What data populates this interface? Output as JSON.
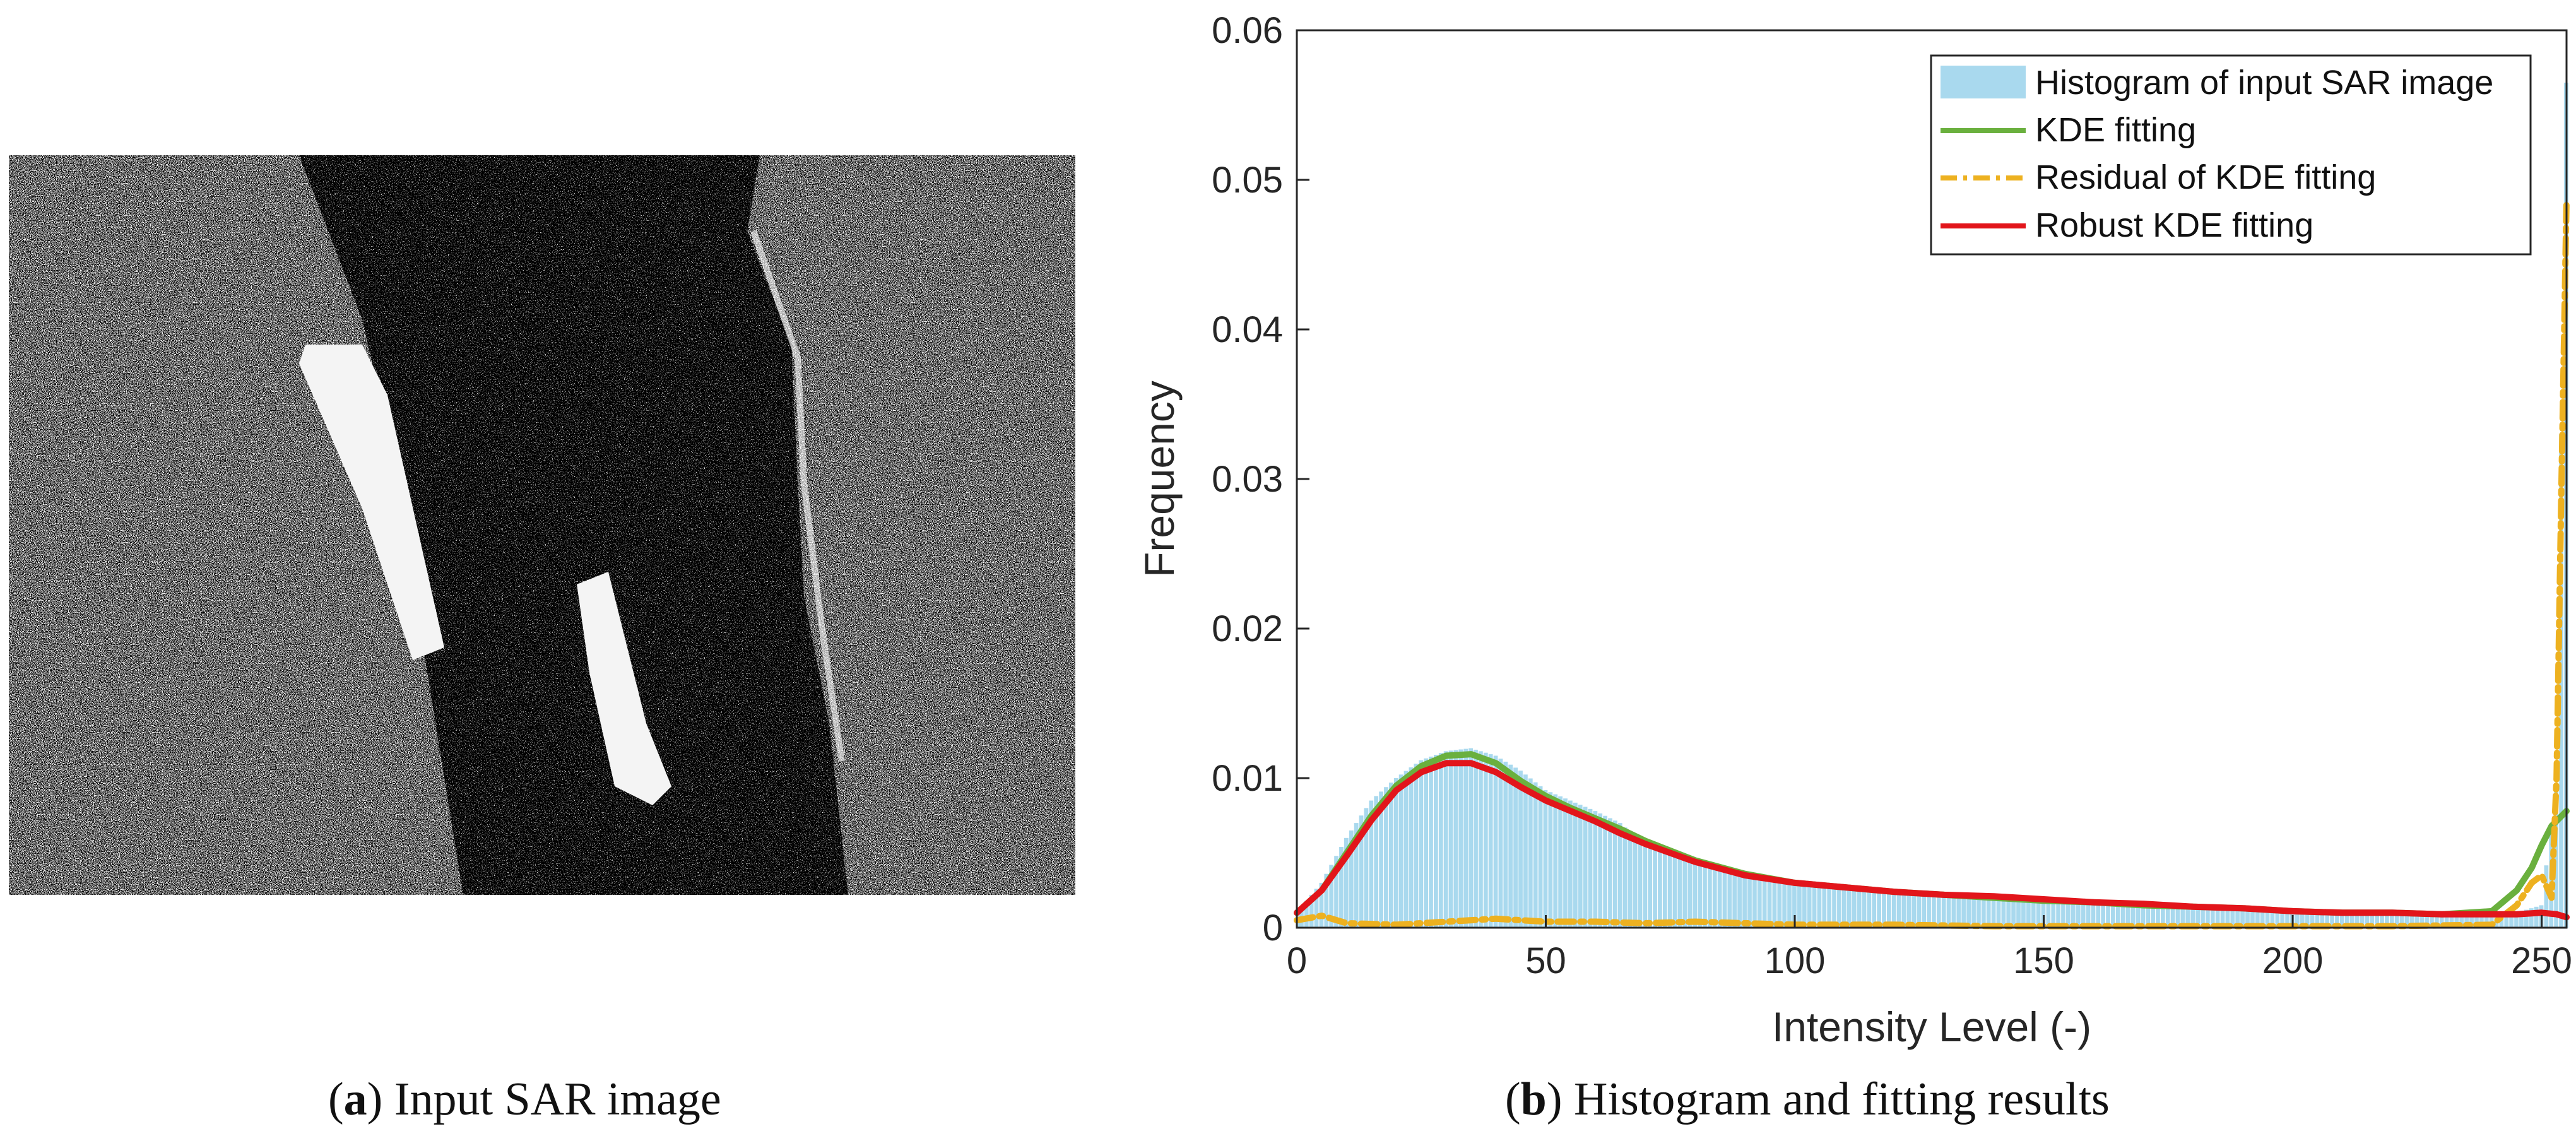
{
  "captions": {
    "a": {
      "tag": "a",
      "text": " Input SAR image"
    },
    "b": {
      "tag": "b",
      "text": " Histogram and fitting results"
    }
  },
  "colors": {
    "histogram": "#a9d9ee",
    "kde": "#6ab03e",
    "residual": "#edb120",
    "robust": "#e2151b",
    "axis": "#262626"
  },
  "chart_data": {
    "type": "bar",
    "xlabel": "Intensity Level (-)",
    "ylabel": "Frequency",
    "xlim": [
      0,
      255
    ],
    "ylim": [
      0,
      0.06
    ],
    "xticks": [
      0,
      50,
      100,
      150,
      200,
      250
    ],
    "yticks": [
      0,
      0.01,
      0.02,
      0.03,
      0.04,
      0.05,
      0.06
    ],
    "ytick_labels": [
      "0",
      "0.01",
      "0.02",
      "0.03",
      "0.04",
      "0.05",
      "0.06"
    ],
    "grid": false,
    "legend_position": "top-right",
    "histogram": {
      "name": "Histogram of input SAR image",
      "x": [
        0,
        5,
        10,
        15,
        20,
        25,
        30,
        35,
        40,
        45,
        50,
        55,
        60,
        65,
        70,
        75,
        80,
        85,
        90,
        95,
        100,
        110,
        120,
        130,
        140,
        150,
        160,
        170,
        180,
        190,
        200,
        210,
        220,
        230,
        240,
        245,
        250,
        253,
        255
      ],
      "values": [
        0.001,
        0.003,
        0.006,
        0.0085,
        0.01,
        0.0112,
        0.0118,
        0.012,
        0.0115,
        0.0105,
        0.0092,
        0.0085,
        0.0078,
        0.007,
        0.0055,
        0.0049,
        0.0045,
        0.004,
        0.0036,
        0.0032,
        0.003,
        0.0027,
        0.0025,
        0.0022,
        0.002,
        0.0018,
        0.0017,
        0.0015,
        0.0014,
        0.0012,
        0.0011,
        0.001,
        0.001,
        0.0009,
        0.0009,
        0.001,
        0.0015,
        0.0095,
        0.0565
      ]
    },
    "series": [
      {
        "name": "KDE fitting",
        "x": [
          0,
          5,
          10,
          15,
          20,
          25,
          30,
          35,
          40,
          45,
          50,
          55,
          60,
          65,
          70,
          80,
          90,
          100,
          110,
          120,
          130,
          140,
          150,
          160,
          170,
          180,
          190,
          200,
          210,
          220,
          230,
          240,
          245,
          248,
          250,
          252,
          255
        ],
        "values": [
          0.001,
          0.0025,
          0.005,
          0.0075,
          0.0095,
          0.0108,
          0.0115,
          0.0116,
          0.011,
          0.0098,
          0.0088,
          0.008,
          0.0073,
          0.0066,
          0.0058,
          0.0045,
          0.0036,
          0.003,
          0.0027,
          0.0024,
          0.0022,
          0.002,
          0.0018,
          0.0017,
          0.0015,
          0.0014,
          0.0013,
          0.0011,
          0.001,
          0.001,
          0.0009,
          0.0011,
          0.0025,
          0.004,
          0.0055,
          0.0068,
          0.0078
        ]
      },
      {
        "name": "Residual of KDE fitting",
        "x": [
          0,
          5,
          10,
          20,
          30,
          40,
          50,
          60,
          70,
          80,
          90,
          100,
          120,
          140,
          160,
          180,
          200,
          220,
          240,
          245,
          248,
          250,
          252,
          253,
          254,
          255
        ],
        "values": [
          0.0005,
          0.0008,
          0.0003,
          0.0002,
          0.0004,
          0.0006,
          0.0004,
          0.0004,
          0.0003,
          0.0004,
          0.0003,
          0.0002,
          0.0002,
          0.0001,
          0.0001,
          0.0001,
          0.0001,
          0.0001,
          0.0002,
          0.0015,
          0.003,
          0.0035,
          0.002,
          0.01,
          0.03,
          0.0487
        ]
      },
      {
        "name": "Robust KDE fitting",
        "x": [
          0,
          5,
          10,
          15,
          20,
          25,
          30,
          35,
          40,
          45,
          50,
          55,
          60,
          65,
          70,
          80,
          90,
          100,
          110,
          120,
          130,
          140,
          150,
          160,
          170,
          180,
          190,
          200,
          210,
          220,
          230,
          240,
          245,
          250,
          253,
          255
        ],
        "values": [
          0.001,
          0.0025,
          0.0048,
          0.0072,
          0.0092,
          0.0104,
          0.011,
          0.011,
          0.0104,
          0.0094,
          0.0085,
          0.0078,
          0.0071,
          0.0063,
          0.0056,
          0.0044,
          0.0035,
          0.003,
          0.0027,
          0.0024,
          0.0022,
          0.0021,
          0.0019,
          0.0017,
          0.0016,
          0.0014,
          0.0013,
          0.0011,
          0.001,
          0.001,
          0.0009,
          0.0009,
          0.0009,
          0.001,
          0.0009,
          0.0007
        ]
      }
    ]
  }
}
